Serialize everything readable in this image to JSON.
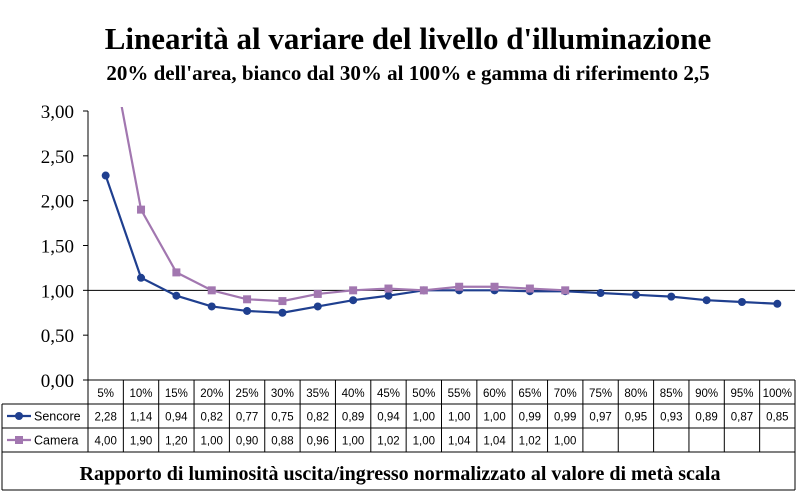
{
  "chart_data": {
    "type": "line",
    "title": "Linearità al variare del livello d'illuminazione",
    "subtitle": "20% dell'area, bianco dal 30% al 100% e gamma di riferimento 2,5",
    "xlabel": "Rapporto di luminosità uscita/ingresso normalizzato al valore di metà scala",
    "ylabel": "",
    "ylim": [
      0,
      3
    ],
    "yticks": [
      "0,00",
      "0,50",
      "1,00",
      "1,50",
      "2,00",
      "2,50",
      "3,00"
    ],
    "categories": [
      "5%",
      "10%",
      "15%",
      "20%",
      "25%",
      "30%",
      "35%",
      "40%",
      "45%",
      "50%",
      "55%",
      "60%",
      "65%",
      "70%",
      "75%",
      "80%",
      "85%",
      "90%",
      "95%",
      "100%"
    ],
    "reference_line": 1.0,
    "grid": false,
    "legend": "table-left",
    "series": [
      {
        "name": "Sencore",
        "color": "#1f3f8f",
        "marker": "circle",
        "values": [
          2.28,
          1.14,
          0.94,
          0.82,
          0.77,
          0.75,
          0.82,
          0.89,
          0.94,
          1.0,
          1.0,
          1.0,
          0.99,
          0.99,
          0.97,
          0.95,
          0.93,
          0.89,
          0.87,
          0.85
        ],
        "labels": [
          "2,28",
          "1,14",
          "0,94",
          "0,82",
          "0,77",
          "0,75",
          "0,82",
          "0,89",
          "0,94",
          "1,00",
          "1,00",
          "1,00",
          "0,99",
          "0,99",
          "0,97",
          "0,95",
          "0,93",
          "0,89",
          "0,87",
          "0,85"
        ]
      },
      {
        "name": "Camera",
        "color": "#a277b0",
        "marker": "square",
        "values": [
          4.0,
          1.9,
          1.2,
          1.0,
          0.9,
          0.88,
          0.96,
          1.0,
          1.02,
          1.0,
          1.04,
          1.04,
          1.02,
          1.0,
          null,
          null,
          null,
          null,
          null,
          null
        ],
        "labels": [
          "4,00",
          "1,90",
          "1,20",
          "1,00",
          "0,90",
          "0,88",
          "0,96",
          "1,00",
          "1,02",
          "1,00",
          "1,04",
          "1,04",
          "1,02",
          "1,00",
          "",
          "",
          "",
          "",
          "",
          ""
        ]
      }
    ]
  }
}
